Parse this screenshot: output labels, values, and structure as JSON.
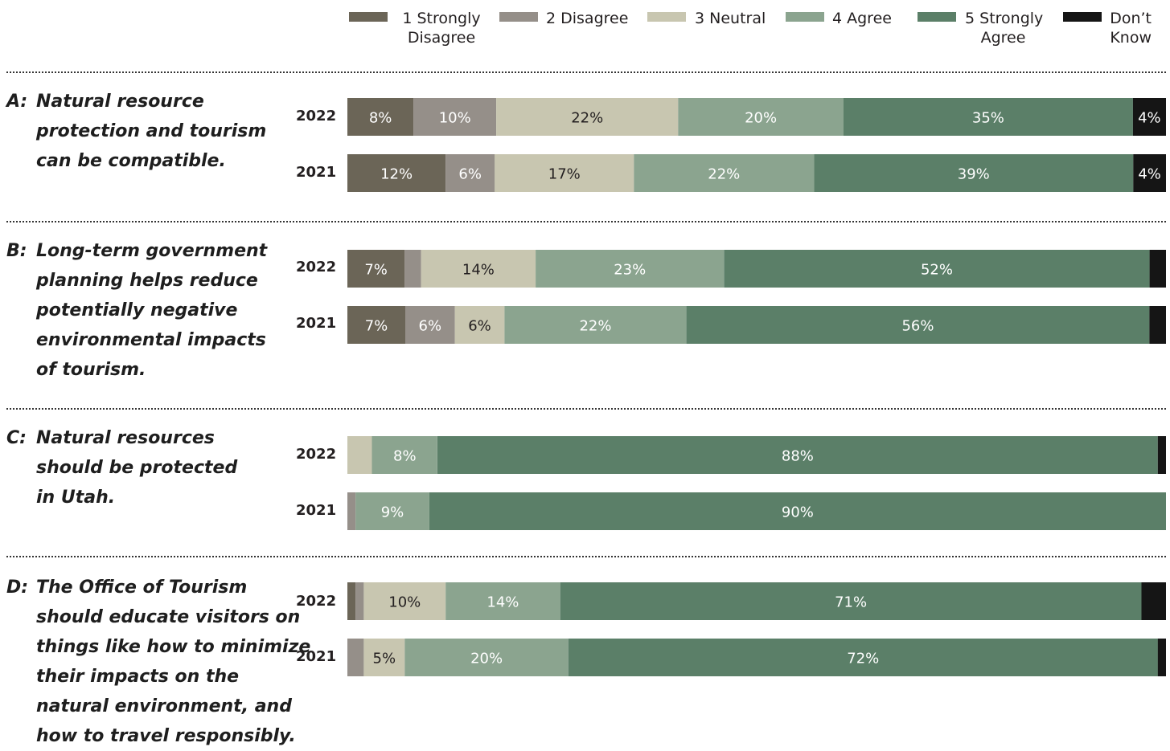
{
  "colors": {
    "strongly_disagree": "#6b6557",
    "disagree": "#958f89",
    "neutral": "#c8c6b0",
    "agree": "#8ba48f",
    "strongly_agree": "#5b7f68",
    "dont_know": "#151515",
    "label_light": "#ffffff",
    "label_dark": "#231f20"
  },
  "legend": [
    {
      "key": "strongly_disagree",
      "lines": [
        "1 Strongly",
        "Disagree"
      ]
    },
    {
      "key": "disagree",
      "lines": [
        "2 Disagree"
      ]
    },
    {
      "key": "neutral",
      "lines": [
        "3 Neutral"
      ]
    },
    {
      "key": "agree",
      "lines": [
        "4 Agree"
      ]
    },
    {
      "key": "strongly_agree",
      "lines": [
        "5 Strongly",
        "Agree"
      ]
    },
    {
      "key": "dont_know",
      "lines": [
        "Don’t",
        "Know"
      ]
    }
  ],
  "chart_data": {
    "type": "bar",
    "orientation": "horizontal",
    "stacked": true,
    "x_range": [
      0,
      100
    ],
    "x_unit": "%",
    "legend_position": "top",
    "categories": [
      "1 Strongly Disagree",
      "2 Disagree",
      "3 Neutral",
      "4 Agree",
      "5 Strongly Agree",
      "Don’t Know"
    ],
    "questions": [
      {
        "letter": "A:",
        "text_lines": [
          "Natural resource",
          "protection and tourism",
          "can be compatible."
        ],
        "rows": [
          {
            "year": "2022",
            "values": [
              8,
              10,
              22,
              20,
              35,
              4
            ],
            "labels": [
              "8%",
              "10%",
              "22%",
              "20%",
              "35%",
              "4%"
            ]
          },
          {
            "year": "2021",
            "values": [
              12,
              6,
              17,
              22,
              39,
              4
            ],
            "labels": [
              "12%",
              "6%",
              "17%",
              "22%",
              "39%",
              "4%"
            ]
          }
        ]
      },
      {
        "letter": "B:",
        "text_lines": [
          "Long-term government",
          "planning helps reduce",
          "potentially negative",
          "environmental impacts",
          "of tourism."
        ],
        "rows": [
          {
            "year": "2022",
            "values": [
              7,
              2,
              14,
              23,
              52,
              2
            ],
            "labels": [
              "7%",
              "",
              "14%",
              "23%",
              "52%",
              ""
            ]
          },
          {
            "year": "2021",
            "values": [
              7,
              6,
              6,
              22,
              56,
              2
            ],
            "labels": [
              "7%",
              "6%",
              "6%",
              "22%",
              "56%",
              ""
            ]
          }
        ]
      },
      {
        "letter": "C:",
        "text_lines": [
          "Natural resources",
          "should be protected",
          "in Utah."
        ],
        "rows": [
          {
            "year": "2022",
            "values": [
              0,
              0,
              3,
              8,
              88,
              1
            ],
            "labels": [
              "",
              "",
              "",
              "8%",
              "88%",
              ""
            ]
          },
          {
            "year": "2021",
            "values": [
              0,
              1,
              0,
              9,
              90,
              0
            ],
            "labels": [
              "",
              "",
              "",
              "9%",
              "90%",
              ""
            ]
          }
        ]
      },
      {
        "letter": "D:",
        "text_lines": [
          "The Office of Tourism",
          "should educate visitors on",
          "things like how to minimize",
          "their impacts on the",
          "natural environment, and",
          "how to travel responsibly."
        ],
        "rows": [
          {
            "year": "2022",
            "values": [
              1,
              1,
              10,
              14,
              71,
              3
            ],
            "labels": [
              "",
              "",
              "10%",
              "14%",
              "71%",
              ""
            ]
          },
          {
            "year": "2021",
            "values": [
              0,
              2,
              5,
              20,
              72,
              1
            ],
            "labels": [
              "",
              "",
              "5%",
              "20%",
              "72%",
              ""
            ]
          }
        ]
      }
    ]
  }
}
